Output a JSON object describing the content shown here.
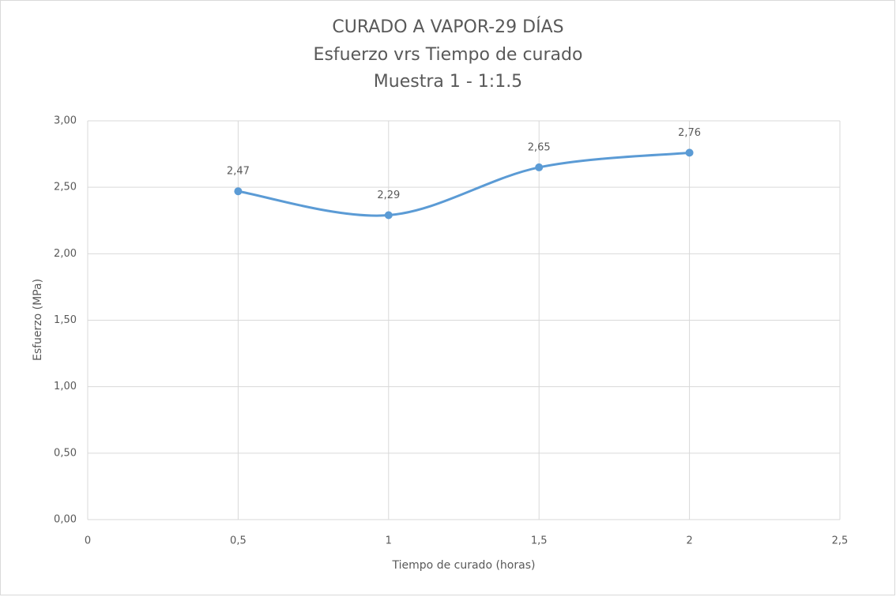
{
  "chart_data": {
    "type": "line",
    "title": "CURADO A VAPOR-29 DÍAS",
    "subtitle": [
      "Esfuerzo vrs Tiempo de curado",
      "Muestra 1 - 1:1.5"
    ],
    "x_label": "Tiempo de curado (horas)",
    "y_label": "Esfuerzo (MPa)",
    "x": [
      0.5,
      1,
      1.5,
      2
    ],
    "series": [
      {
        "name": "Muestra 1",
        "color": "#5b9bd5",
        "values": [
          2.47,
          2.29,
          2.65,
          2.76
        ],
        "value_labels": [
          "2,47",
          "2,29",
          "2,65",
          "2,76"
        ]
      }
    ],
    "xlim": [
      0,
      2.5
    ],
    "xticks": [
      0,
      {
        "value": 0.5,
        "label": "0,5"
      },
      1,
      {
        "value": 1.5,
        "label": "1,5"
      },
      2,
      {
        "value": 2.5,
        "label": "2,5"
      }
    ],
    "ylim": [
      0,
      3
    ],
    "yticks": [
      {
        "value": 0,
        "label": "0,00"
      },
      {
        "value": 0.5,
        "label": "0,50"
      },
      {
        "value": 1,
        "label": "1,00"
      },
      {
        "value": 1.5,
        "label": "1,50"
      },
      {
        "value": 2,
        "label": "2,00"
      },
      {
        "value": 2.5,
        "label": "2,50"
      },
      {
        "value": 3,
        "label": "3,00"
      }
    ],
    "grid": true,
    "smooth": true
  }
}
